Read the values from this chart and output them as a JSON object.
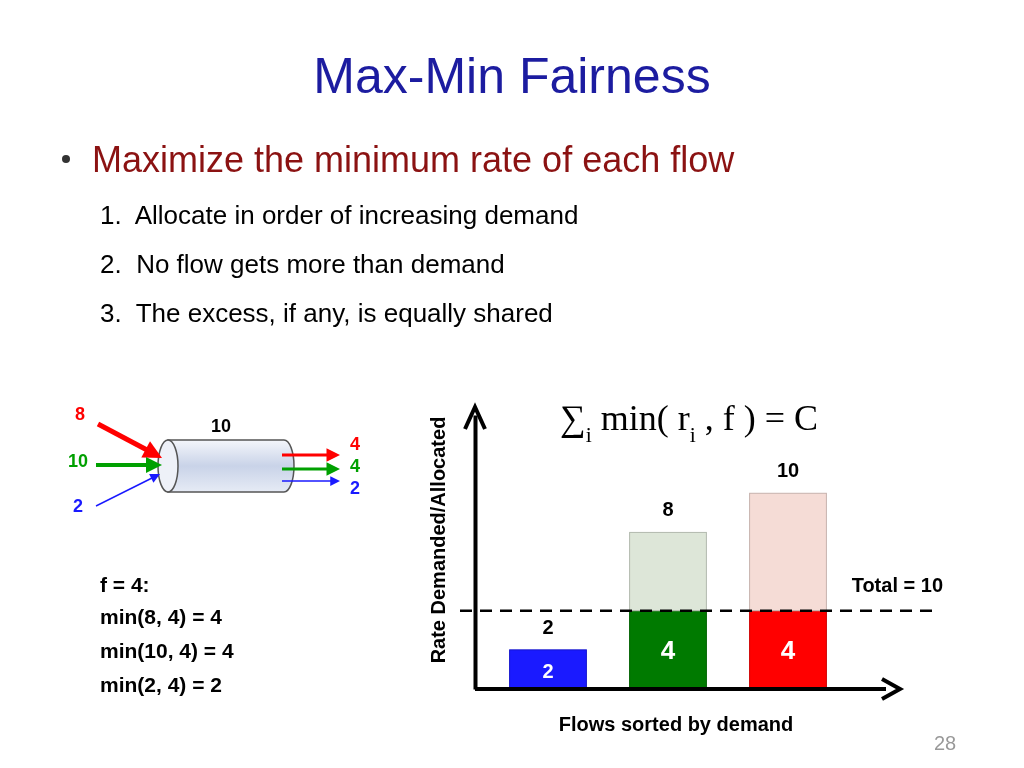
{
  "chart_data": {
    "type": "bar",
    "title": "Max-Min Fairness",
    "subtitle": "Maximize the minimum rate of each flow",
    "xlabel": "Flows sorted by demand",
    "ylabel": "Rate Demanded/Allocated",
    "categories": [
      null,
      null,
      null
    ],
    "stacked": true,
    "ylim": [
      0,
      14
    ],
    "series": [
      {
        "colors": [
          "#1a1aff",
          "#007a00",
          "#ff0000"
        ],
        "values": [
          2,
          4,
          4
        ],
        "value_labels": [
          "2",
          "4",
          "4"
        ]
      },
      {
        "colors": [
          "#dde0f5",
          "#dde6d8",
          "#f5dcd6"
        ],
        "values": [
          0,
          4,
          6
        ]
      }
    ],
    "totals": [
      "2",
      "8",
      "10"
    ],
    "ref_lines": [
      {
        "axis": "y",
        "value": 4,
        "line_style": "dashed",
        "color": "#000000"
      }
    ],
    "annotations": [
      "1.  Allocate in order of increasing demand",
      "2.  No flow gets more than demand",
      "3.  The excess, if any, is equally shared",
      "∑$_{i}$ min( r$_{i}$ , f ) = C",
      "8",
      "10",
      "2",
      "10",
      "4",
      "4",
      "2",
      "f = 4:",
      "min(8, 4) = 4",
      "min(10, 4) = 4",
      "min(2, 4) = 2",
      "28",
      {
        "text": "Total = 10",
        "y": 4
      }
    ]
  }
}
